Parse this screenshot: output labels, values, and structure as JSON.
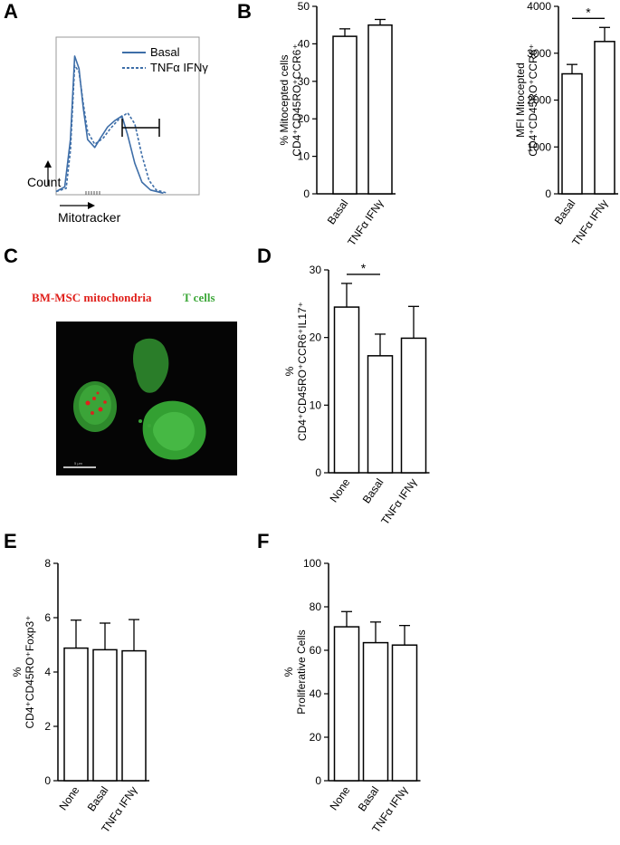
{
  "panels": {
    "A": {
      "letter": "A"
    },
    "B": {
      "letter": "B"
    },
    "C": {
      "letter": "C"
    },
    "D": {
      "letter": "D"
    },
    "E": {
      "letter": "E"
    },
    "F": {
      "letter": "F"
    }
  },
  "panelA": {
    "legend": [
      "Basal",
      "TNFα IFNγ"
    ],
    "xlabel": "Mitotracker",
    "ylabel": "Count"
  },
  "panelC": {
    "label_red": "BM-MSC mitochondria",
    "label_green": "T cells",
    "scale_text": "5 μm",
    "colors": {
      "red": "#e0201b",
      "green": "#3ea83a"
    }
  },
  "significance_mark": "*",
  "chart_data": [
    {
      "id": "A",
      "type": "line",
      "description_free": true,
      "series": [
        {
          "name": "Basal",
          "style": "solid",
          "points": [
            [
              0,
              0.02
            ],
            [
              0.06,
              0.05
            ],
            [
              0.1,
              0.35
            ],
            [
              0.13,
              0.88
            ],
            [
              0.16,
              0.8
            ],
            [
              0.19,
              0.55
            ],
            [
              0.22,
              0.35
            ],
            [
              0.27,
              0.3
            ],
            [
              0.31,
              0.36
            ],
            [
              0.36,
              0.43
            ],
            [
              0.41,
              0.47
            ],
            [
              0.46,
              0.5
            ],
            [
              0.5,
              0.38
            ],
            [
              0.55,
              0.2
            ],
            [
              0.6,
              0.08
            ],
            [
              0.66,
              0.03
            ],
            [
              0.75,
              0.01
            ]
          ]
        },
        {
          "name": "TNFα IFNγ",
          "style": "dashed",
          "points": [
            [
              0,
              0.02
            ],
            [
              0.07,
              0.04
            ],
            [
              0.1,
              0.28
            ],
            [
              0.13,
              0.82
            ],
            [
              0.16,
              0.78
            ],
            [
              0.19,
              0.58
            ],
            [
              0.22,
              0.4
            ],
            [
              0.27,
              0.32
            ],
            [
              0.33,
              0.36
            ],
            [
              0.38,
              0.42
            ],
            [
              0.44,
              0.48
            ],
            [
              0.5,
              0.52
            ],
            [
              0.55,
              0.45
            ],
            [
              0.6,
              0.25
            ],
            [
              0.65,
              0.09
            ],
            [
              0.7,
              0.03
            ],
            [
              0.78,
              0.01
            ]
          ]
        }
      ]
    },
    {
      "id": "B1",
      "type": "bar",
      "categories": [
        "Basal",
        "TNFα IFNγ"
      ],
      "values": [
        42,
        45
      ],
      "errors": [
        2,
        1.5
      ],
      "ylim": [
        0,
        50
      ],
      "yticks": [
        0,
        10,
        20,
        30,
        40,
        50
      ],
      "ylabel_line1": "% Mitocepted cells",
      "ylabel_line2": "CD4⁺CD45RO⁺CCR6⁺"
    },
    {
      "id": "B2",
      "type": "bar",
      "categories": [
        "Basal",
        "TNFα IFNγ"
      ],
      "values": [
        2560,
        3250
      ],
      "errors": [
        200,
        300
      ],
      "ylim": [
        0,
        4000
      ],
      "yticks": [
        0,
        1000,
        2000,
        3000,
        4000
      ],
      "ylabel_line1": "MFI Mitocepted",
      "ylabel_line2": "CD4⁺CD45RO⁺CCR6⁺",
      "significance": [
        [
          0,
          1
        ]
      ]
    },
    {
      "id": "D",
      "type": "bar",
      "categories": [
        "None",
        "Basal",
        "TNFα IFNγ"
      ],
      "values": [
        24.5,
        17.3,
        19.9
      ],
      "errors": [
        3.5,
        3.2,
        4.7
      ],
      "ylim": [
        0,
        30
      ],
      "yticks": [
        0,
        10,
        20,
        30
      ],
      "ylabel_line1": "%",
      "ylabel_line2": "CD4⁺CD45RO⁺CCR6⁺IL17⁺",
      "significance": [
        [
          0,
          1
        ]
      ]
    },
    {
      "id": "E",
      "type": "bar",
      "categories": [
        "None",
        "Basal",
        "TNFα IFNγ"
      ],
      "values": [
        4.88,
        4.82,
        4.78
      ],
      "errors": [
        1.03,
        0.98,
        1.15
      ],
      "ylim": [
        0,
        8
      ],
      "yticks": [
        0,
        2,
        4,
        6,
        8
      ],
      "ylabel_line1": "%",
      "ylabel_line2": "CD4⁺CD45RO⁺Foxp3⁺"
    },
    {
      "id": "F",
      "type": "bar",
      "categories": [
        "None",
        "Basal",
        "TNFα IFNγ"
      ],
      "values": [
        70.8,
        63.5,
        62.4
      ],
      "errors": [
        7,
        9.5,
        9
      ],
      "ylim": [
        0,
        100
      ],
      "yticks": [
        0,
        20,
        40,
        60,
        80,
        100
      ],
      "ylabel_line1": "%",
      "ylabel_line2": "Proliferative Cells"
    }
  ]
}
